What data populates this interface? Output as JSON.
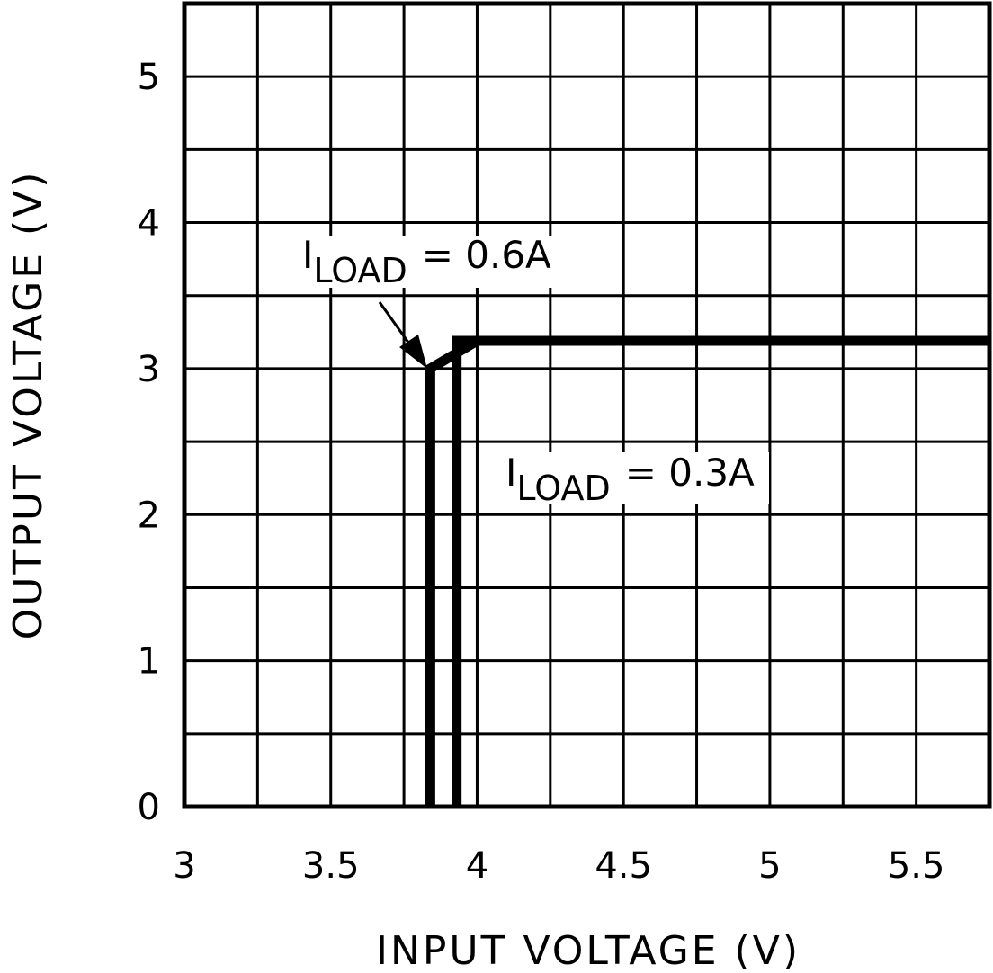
{
  "chart_data": {
    "type": "line",
    "title": "",
    "xlabel": "INPUT VOLTAGE (V)",
    "ylabel": "OUTPUT VOLTAGE (V)",
    "xlim": [
      3,
      5.75
    ],
    "ylim": [
      0,
      5.5
    ],
    "xticks": [
      3,
      3.5,
      4,
      4.5,
      5,
      5.5
    ],
    "xtick_labels": [
      "3",
      "3.5",
      "4",
      "4.5",
      "5",
      "5.5"
    ],
    "yticks": [
      0,
      1,
      2,
      3,
      4,
      5
    ],
    "ytick_labels": [
      "0",
      "1",
      "2",
      "3",
      "4",
      "5"
    ],
    "grid": true,
    "x_grid_step": 0.25,
    "y_grid_step": 0.5,
    "legend": null,
    "series": [
      {
        "name": "ILOAD = 0.6A",
        "points": [
          [
            3.84,
            0
          ],
          [
            3.84,
            3.0
          ],
          [
            4.0,
            3.19
          ],
          [
            5.75,
            3.19
          ]
        ]
      },
      {
        "name": "ILOAD = 0.3A",
        "points": [
          [
            3.93,
            0
          ],
          [
            3.93,
            3.19
          ],
          [
            5.75,
            3.19
          ]
        ]
      }
    ],
    "annotations": [
      {
        "text_main": "I",
        "text_sub": "LOAD",
        "text_rest": " = 0.6A",
        "arrow_to": [
          3.84,
          3.0
        ]
      },
      {
        "text_main": "I",
        "text_sub": "LOAD",
        "text_rest": " = 0.3A"
      }
    ]
  },
  "labels": {
    "x_title": "INPUT VOLTAGE (V)",
    "y_title": "OUTPUT VOLTAGE (V)",
    "anno_06": {
      "main": "I",
      "sub": "LOAD",
      "rest": "= 0.6A"
    },
    "anno_03": {
      "main": "I",
      "sub": "LOAD",
      "rest": "= 0.3A"
    }
  },
  "colors": {
    "line": "#000000",
    "grid": "#000000",
    "background": "#ffffff"
  }
}
